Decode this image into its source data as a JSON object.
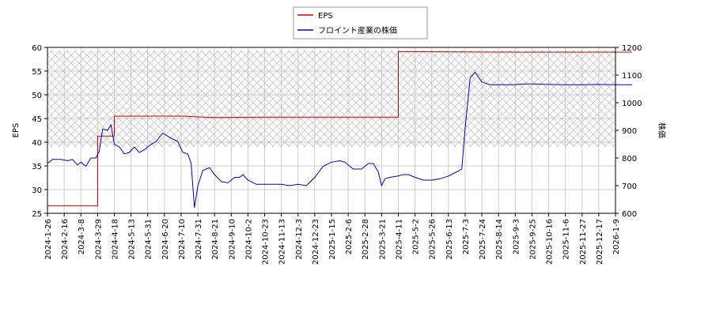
{
  "chart_data": {
    "type": "line",
    "title": "",
    "legend": {
      "placement": "top-center",
      "entries": [
        {
          "name": "EPS",
          "color": "#cc0000"
        },
        {
          "name": "フロイント産業の株価",
          "color": "#0000cc"
        }
      ]
    },
    "y_left": {
      "label": "EPS",
      "range": [
        25,
        60
      ],
      "ticks": [
        25,
        30,
        35,
        40,
        45,
        50,
        55,
        60
      ]
    },
    "y_right": {
      "label": "株価",
      "range": [
        600,
        1200
      ],
      "ticks": [
        600,
        700,
        800,
        900,
        1000,
        1100,
        1200
      ]
    },
    "x_ticks": [
      "2024-1-26",
      "2024-2-16",
      "2024-3-8",
      "2024-3-29",
      "2024-4-18",
      "2024-5-13",
      "2024-5-31",
      "2024-6-20",
      "2024-7-10",
      "2024-7-31",
      "2024-8-21",
      "2024-9-10",
      "2024-10-2",
      "2024-10-23",
      "2024-11-13",
      "2024-12-3",
      "2024-12-23",
      "2025-1-15",
      "2025-2-6",
      "2025-2-28",
      "2025-3-21",
      "2025-4-11",
      "2025-5-2",
      "2025-5-26",
      "2025-6-13",
      "2025-7-3",
      "2025-7-24",
      "2025-8-14",
      "2025-9-3",
      "2025-9-25",
      "2025-10-16",
      "2025-11-6",
      "2025-11-27",
      "2025-12-17",
      "2026-1-9"
    ],
    "grid": true,
    "hatched_band_stock": [
      840,
      1190
    ],
    "series": [
      {
        "name": "EPS",
        "axis": "left",
        "color": "#cc0000",
        "points": [
          [
            0,
            26.6
          ],
          [
            3,
            26.6
          ],
          [
            3,
            41.3
          ],
          [
            4,
            41.3
          ],
          [
            4,
            45.5
          ],
          [
            8,
            45.5
          ],
          [
            10,
            45.2
          ],
          [
            13,
            45.3
          ],
          [
            20,
            45.3
          ],
          [
            21,
            45.3
          ],
          [
            21,
            59.1
          ],
          [
            28,
            59.0
          ],
          [
            35,
            59.0
          ]
        ]
      },
      {
        "name": "フロイント産業の株価",
        "axis": "right",
        "color": "#0000cc",
        "points": [
          [
            0,
            780
          ],
          [
            0.3,
            795
          ],
          [
            0.8,
            795
          ],
          [
            1.2,
            790
          ],
          [
            1.5,
            795
          ],
          [
            1.8,
            775
          ],
          [
            2.0,
            785
          ],
          [
            2.3,
            770
          ],
          [
            2.6,
            800
          ],
          [
            2.9,
            800
          ],
          [
            3.1,
            825
          ],
          [
            3.3,
            905
          ],
          [
            3.6,
            900
          ],
          [
            3.8,
            920
          ],
          [
            4.0,
            850
          ],
          [
            4.3,
            840
          ],
          [
            4.6,
            815
          ],
          [
            4.9,
            820
          ],
          [
            5.2,
            840
          ],
          [
            5.5,
            820
          ],
          [
            5.8,
            830
          ],
          [
            6.1,
            845
          ],
          [
            6.5,
            860
          ],
          [
            6.9,
            890
          ],
          [
            7.3,
            875
          ],
          [
            7.8,
            860
          ],
          [
            8.1,
            820
          ],
          [
            8.4,
            815
          ],
          [
            8.6,
            780
          ],
          [
            8.8,
            620
          ],
          [
            9.0,
            700
          ],
          [
            9.3,
            755
          ],
          [
            9.7,
            765
          ],
          [
            10.0,
            740
          ],
          [
            10.4,
            715
          ],
          [
            10.8,
            710
          ],
          [
            11.2,
            730
          ],
          [
            11.5,
            730
          ],
          [
            11.7,
            740
          ],
          [
            12.0,
            720
          ],
          [
            12.5,
            705
          ],
          [
            13.0,
            705
          ],
          [
            13.5,
            705
          ],
          [
            14.0,
            705
          ],
          [
            14.5,
            700
          ],
          [
            15.0,
            705
          ],
          [
            15.5,
            700
          ],
          [
            16.0,
            730
          ],
          [
            16.5,
            770
          ],
          [
            17.0,
            785
          ],
          [
            17.5,
            790
          ],
          [
            17.8,
            785
          ],
          [
            18.0,
            775
          ],
          [
            18.3,
            760
          ],
          [
            18.8,
            760
          ],
          [
            19.2,
            780
          ],
          [
            19.5,
            780
          ],
          [
            19.8,
            750
          ],
          [
            20.0,
            700
          ],
          [
            20.2,
            725
          ],
          [
            20.5,
            730
          ],
          [
            21.0,
            735
          ],
          [
            21.3,
            740
          ],
          [
            21.6,
            740
          ],
          [
            22.0,
            730
          ],
          [
            22.5,
            720
          ],
          [
            23.0,
            720
          ],
          [
            23.5,
            725
          ],
          [
            24.0,
            735
          ],
          [
            24.5,
            750
          ],
          [
            24.8,
            760
          ],
          [
            25.0,
            905
          ],
          [
            25.3,
            1090
          ],
          [
            25.6,
            1110
          ],
          [
            26.0,
            1075
          ],
          [
            26.5,
            1065
          ],
          [
            27.0,
            1065
          ],
          [
            28.0,
            1065
          ],
          [
            28.5,
            1068
          ],
          [
            29.0,
            1068
          ],
          [
            30.0,
            1066
          ],
          [
            31.0,
            1065
          ],
          [
            32.0,
            1065
          ],
          [
            33.0,
            1066
          ],
          [
            34.0,
            1065
          ],
          [
            35.0,
            1065
          ]
        ]
      }
    ]
  }
}
